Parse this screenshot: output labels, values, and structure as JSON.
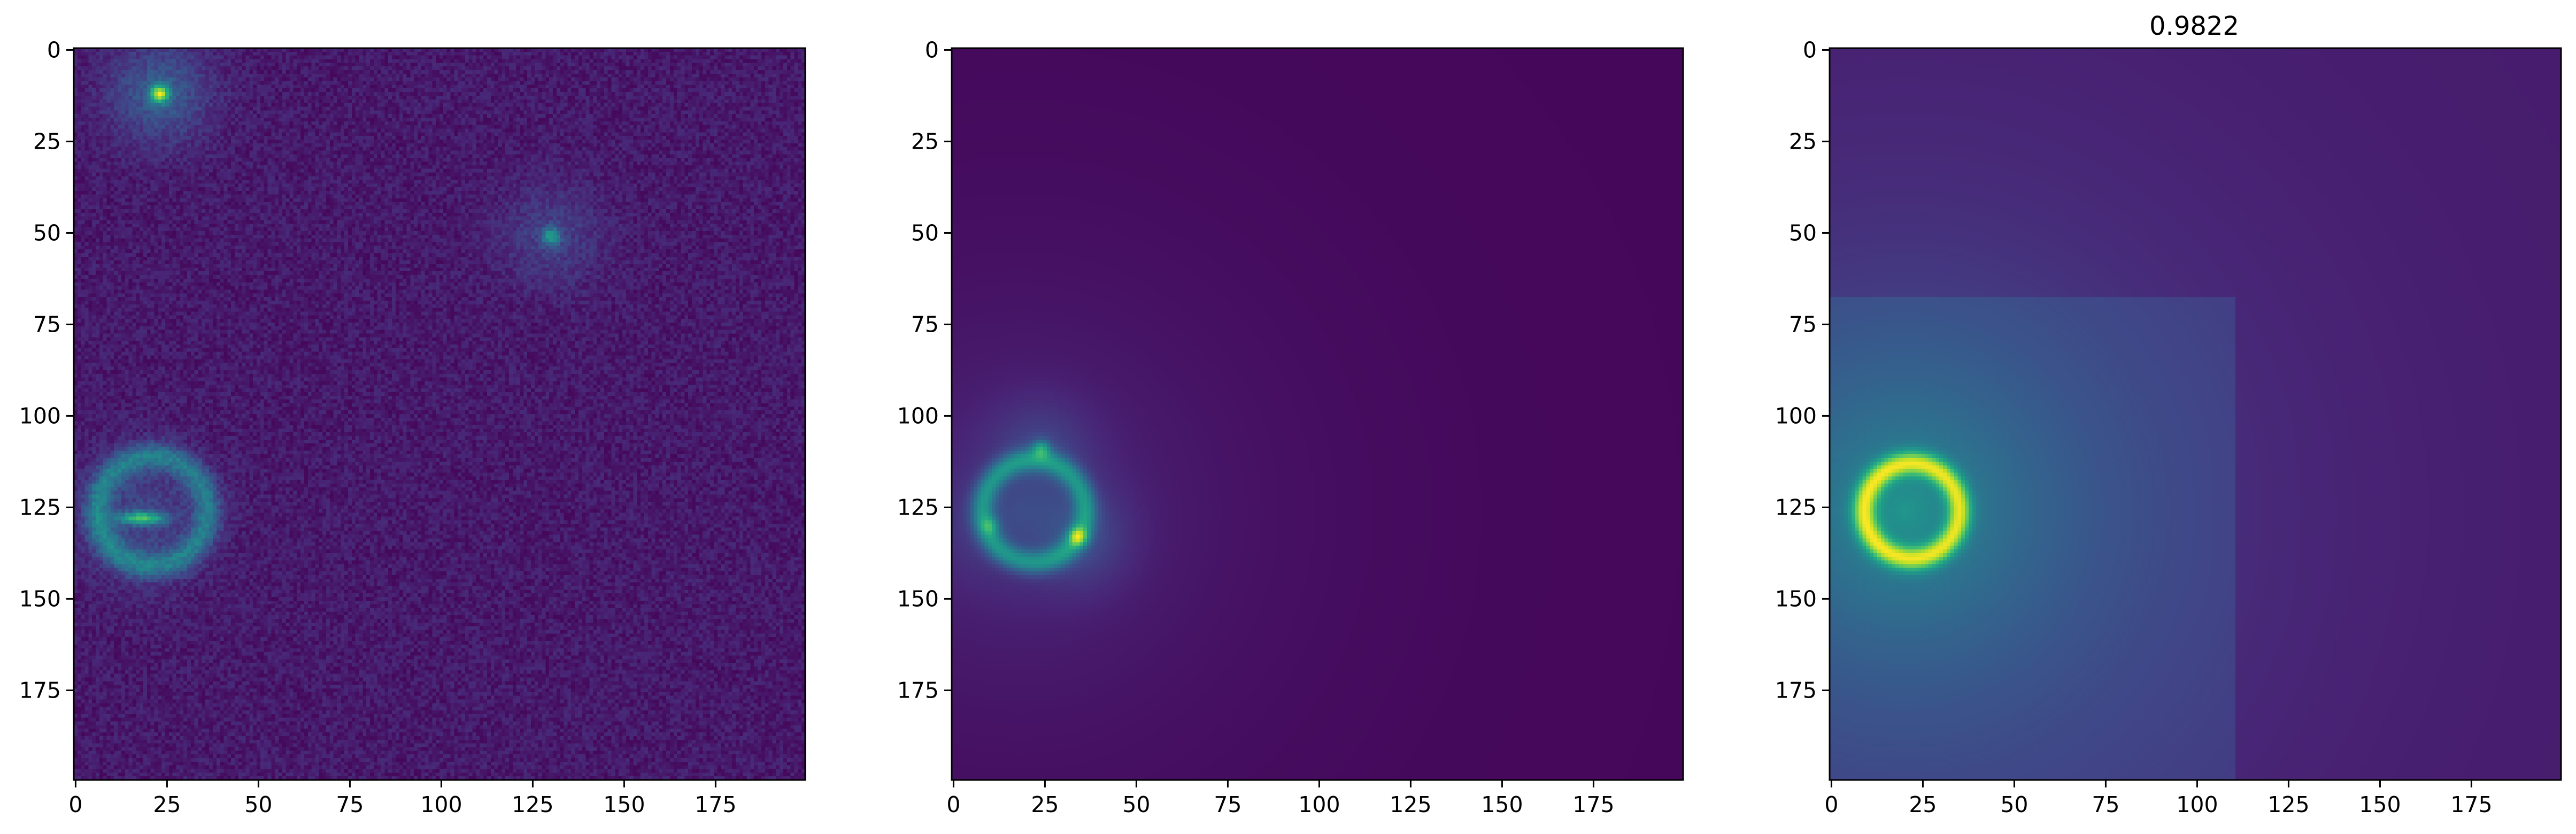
{
  "chart_data": [
    {
      "type": "heatmap",
      "title": "",
      "xlabel": "",
      "ylabel": "",
      "xlim": [
        0,
        200
      ],
      "ylim": [
        200,
        0
      ],
      "xticks": [
        0,
        25,
        50,
        75,
        100,
        125,
        150,
        175
      ],
      "yticks": [
        0,
        25,
        50,
        75,
        100,
        125,
        150,
        175
      ],
      "colormap": "viridis",
      "background_level": 0.08,
      "noise": true,
      "features": [
        {
          "kind": "point_source",
          "x": 23,
          "y": 12,
          "amplitude": 1.0
        },
        {
          "kind": "point_source",
          "x": 130,
          "y": 51,
          "amplitude": 0.55
        },
        {
          "kind": "elongated_source",
          "x": 18,
          "y": 128,
          "amplitude": 0.75
        },
        {
          "kind": "arc",
          "center_x": 21,
          "center_y": 126,
          "radius": 15,
          "amplitude": 0.35
        }
      ]
    },
    {
      "type": "heatmap",
      "title": "",
      "xlabel": "",
      "ylabel": "",
      "xlim": [
        0,
        200
      ],
      "ylim": [
        200,
        0
      ],
      "xticks": [
        0,
        25,
        50,
        75,
        100,
        125,
        150,
        175
      ],
      "yticks": [
        0,
        25,
        50,
        75,
        100,
        125,
        150,
        175
      ],
      "colormap": "viridis",
      "background_level": 0.03,
      "noise": false,
      "features": [
        {
          "kind": "ring",
          "center_x": 22,
          "center_y": 126,
          "radius": 14,
          "amplitude": 0.65
        },
        {
          "kind": "point_source",
          "x": 34,
          "y": 133,
          "amplitude": 1.0
        },
        {
          "kind": "point_source",
          "x": 24,
          "y": 109,
          "amplitude": 0.75
        },
        {
          "kind": "point_source",
          "x": 10,
          "y": 130,
          "amplitude": 0.5
        },
        {
          "kind": "halo",
          "center_x": 18,
          "center_y": 126,
          "amplitude": 0.25
        }
      ]
    },
    {
      "type": "heatmap",
      "title": "0.9822",
      "xlabel": "",
      "ylabel": "",
      "xlim": [
        0,
        200
      ],
      "ylim": [
        200,
        0
      ],
      "xticks": [
        0,
        25,
        50,
        75,
        100,
        125,
        150,
        175
      ],
      "yticks": [
        0,
        25,
        50,
        75,
        100,
        125,
        150,
        175
      ],
      "colormap": "viridis",
      "background_level": 0.06,
      "noise": false,
      "features": [
        {
          "kind": "ring",
          "center_x": 22,
          "center_y": 126,
          "radius": 13,
          "amplitude": 0.45
        },
        {
          "kind": "halo",
          "center_x": 20,
          "center_y": 126,
          "amplitude": 0.3
        },
        {
          "kind": "box_region",
          "x_range": [
            0,
            110
          ],
          "y_range": [
            68,
            200
          ],
          "amplitude": 0.06
        }
      ]
    }
  ]
}
